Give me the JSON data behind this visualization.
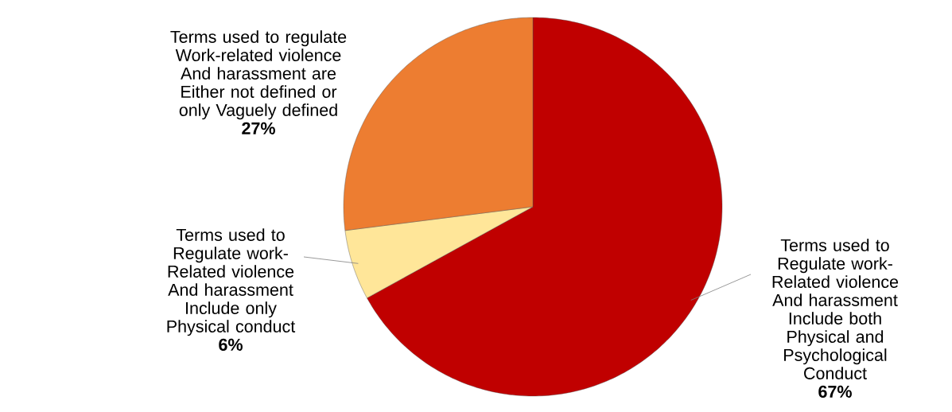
{
  "chart_data": {
    "type": "pie",
    "categories": [
      "Terms used to Regulate work-Related violence And harassment Include both Physical and Psychological Conduct",
      "Terms used to Regulate work-Related violence And harassment Include only Physical conduct",
      "Terms used to regulate Work-related violence And harassment are Either not defined or only Vaguely defined"
    ],
    "values": [
      67,
      6,
      27
    ],
    "colors": [
      "#c00000",
      "#ffe699",
      "#ed7d31"
    ],
    "value_labels": [
      "67%",
      "6%",
      "27%"
    ]
  }
}
